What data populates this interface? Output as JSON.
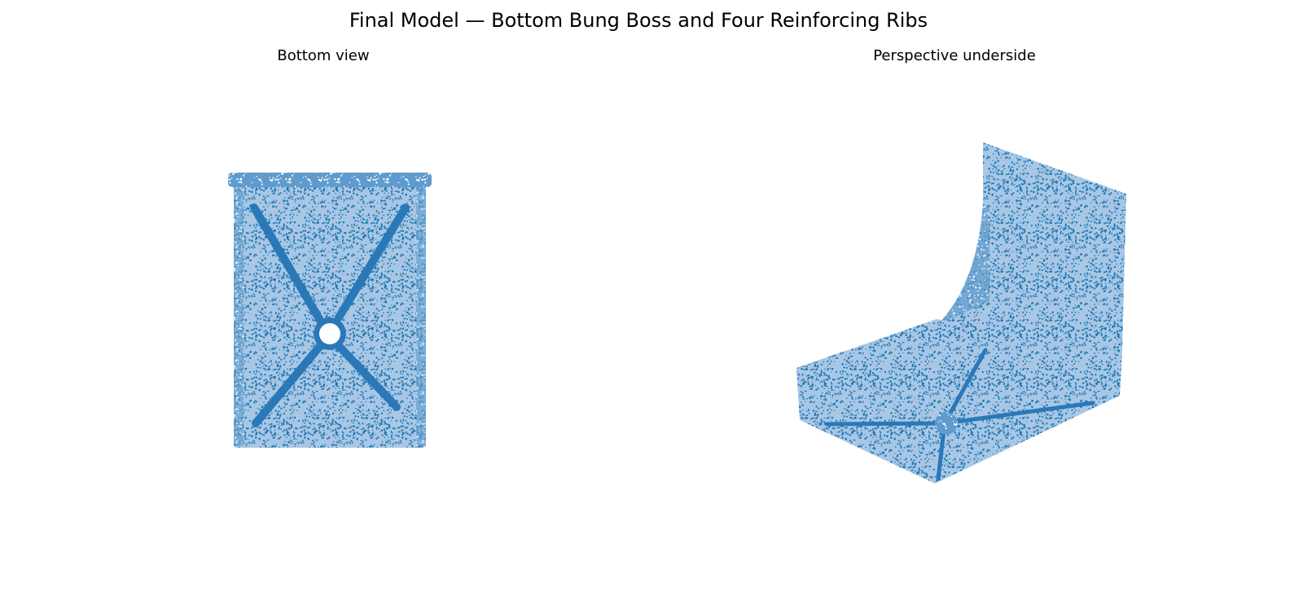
{
  "title": "Final Model — Bottom Bung Boss and Four Reinforcing Ribs",
  "panels": [
    {
      "title": "Bottom view"
    },
    {
      "title": "Perspective underside"
    }
  ]
}
